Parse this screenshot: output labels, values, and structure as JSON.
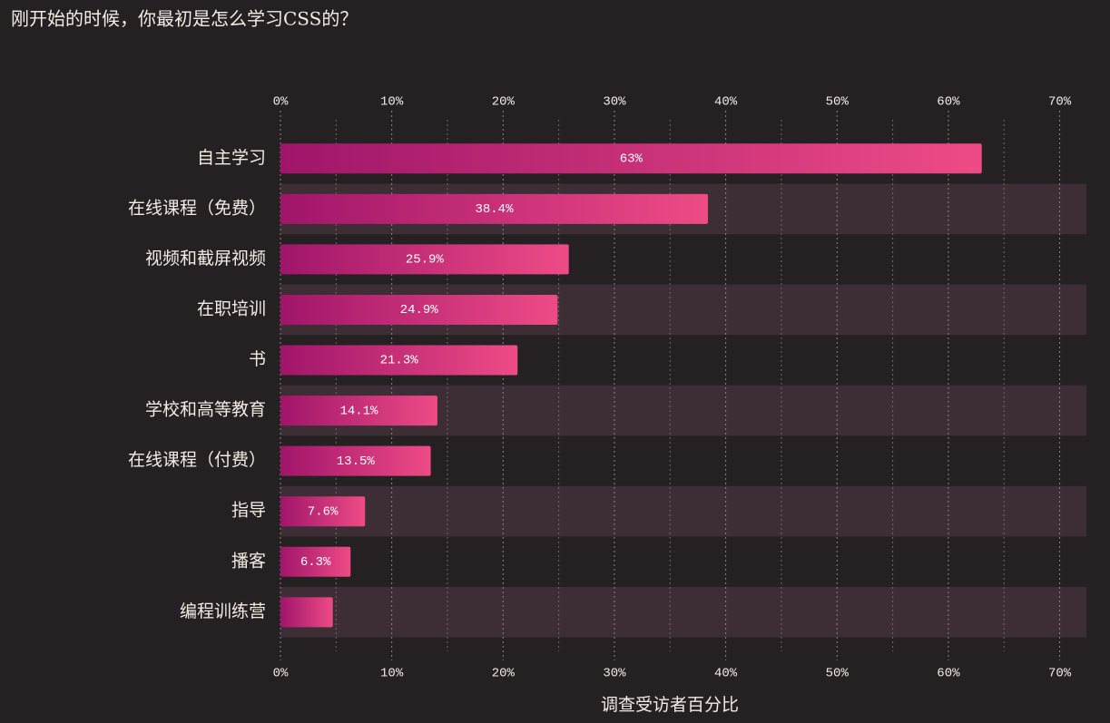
{
  "chart_data": {
    "type": "barh",
    "title": "刚开始的时候，你最初是怎么学习CSS的？",
    "categories": [
      "自主学习",
      "在线课程（免费）",
      "视频和截屏视频",
      "在职培训",
      "书",
      "学校和高等教育",
      "在线课程（付费）",
      "指导",
      "播客",
      "编程训练营"
    ],
    "values": [
      63,
      38.4,
      25.9,
      24.9,
      21.3,
      14.1,
      13.5,
      7.6,
      6.3,
      4.7
    ],
    "value_labels": [
      "63%",
      "38.4%",
      "25.9%",
      "24.9%",
      "21.3%",
      "14.1%",
      "13.5%",
      "7.6%",
      "6.3%",
      null
    ],
    "color": [
      "#a0156a",
      "#ee4b86"
    ],
    "xlabel": "调查受访者百分比",
    "xlim": [
      0,
      72.4
    ],
    "xticks": [
      {
        "value": 0,
        "label": "0%"
      },
      {
        "value": 10,
        "label": "10%"
      },
      {
        "value": 20,
        "label": "20%"
      },
      {
        "value": 30,
        "label": "30%"
      },
      {
        "value": 40,
        "label": "40%"
      },
      {
        "value": 50,
        "label": "50%"
      },
      {
        "value": 60,
        "label": "60%"
      },
      {
        "value": 70,
        "label": "70%"
      }
    ],
    "minor_xticks": [
      5,
      15,
      25,
      35,
      45,
      55,
      65
    ],
    "grid": true
  }
}
